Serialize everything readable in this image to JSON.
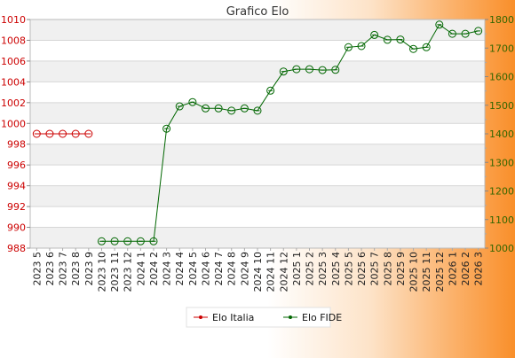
{
  "chart_data": {
    "type": "line",
    "title": "Grafico Elo",
    "categories": [
      "2023 5",
      "2023 6",
      "2023 7",
      "2023 8",
      "2023 9",
      "2023 10",
      "2023 11",
      "2023 12",
      "2024 1",
      "2024 2",
      "2024 3",
      "2024 4",
      "2024 5",
      "2024 6",
      "2024 7",
      "2024 8",
      "2024 9",
      "2024 10",
      "2024 11",
      "2024 12",
      "2025 1",
      "2025 2",
      "2025 3",
      "2025 4",
      "2025 5",
      "2025 6",
      "2025 7",
      "2025 8",
      "2025 9",
      "2025 10",
      "2025 11",
      "2025 12",
      "2026 1",
      "2026 2",
      "2026 3"
    ],
    "y_left": {
      "ticks": [
        988,
        990,
        992,
        994,
        996,
        998,
        1000,
        1002,
        1004,
        1006,
        1008,
        1010
      ],
      "range": [
        988,
        1010
      ],
      "color": "#cc0000"
    },
    "y_right": {
      "ticks": [
        1000,
        1100,
        1200,
        1300,
        1400,
        1500,
        1600,
        1700,
        1800
      ],
      "range": [
        1000,
        1800
      ],
      "color": "#336600"
    },
    "series": [
      {
        "name": "Elo Italia",
        "axis": "left",
        "color": "#cc0000",
        "values": [
          999,
          999,
          999,
          999,
          999,
          null,
          null,
          null,
          null,
          null,
          null,
          null,
          null,
          null,
          null,
          null,
          null,
          null,
          null,
          null,
          null,
          null,
          null,
          null,
          null,
          null,
          null,
          null,
          null,
          null,
          null,
          null,
          null,
          null,
          null
        ]
      },
      {
        "name": "Elo FIDE",
        "axis": "right",
        "color": "#006600",
        "values": [
          null,
          null,
          null,
          null,
          null,
          1024,
          1024,
          1024,
          1024,
          1024,
          1418,
          1496,
          1511,
          1489,
          1489,
          1481,
          1489,
          1481,
          1551,
          1618,
          1626,
          1626,
          1623,
          1624,
          1703,
          1707,
          1746,
          1729,
          1730,
          1697,
          1703,
          1782,
          1750,
          1750,
          1760
        ]
      }
    ],
    "grid": true,
    "legend_position": "bottom"
  }
}
